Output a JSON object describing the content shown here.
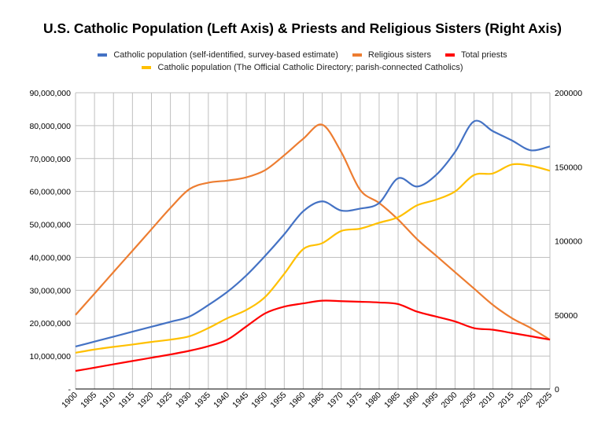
{
  "chart_data": {
    "type": "line",
    "title": "U.S. Catholic Population (Left Axis) & Priests and Religious Sisters (Right Axis)",
    "x": [
      1900,
      1905,
      1910,
      1915,
      1920,
      1925,
      1930,
      1935,
      1940,
      1945,
      1950,
      1955,
      1960,
      1965,
      1970,
      1975,
      1980,
      1985,
      1990,
      1995,
      2000,
      2005,
      2010,
      2015,
      2020,
      2025
    ],
    "left_axis": {
      "min": 0,
      "max": 90000000,
      "ticks": [
        "-",
        "10,000,000",
        "20,000,000",
        "30,000,000",
        "40,000,000",
        "50,000,000",
        "60,000,000",
        "70,000,000",
        "80,000,000",
        "90,000,000"
      ]
    },
    "right_axis": {
      "min": 0,
      "max": 200000,
      "ticks": [
        "0",
        "50000",
        "100000",
        "150000",
        "200000"
      ]
    },
    "grid": true,
    "legend_position": "top",
    "series": [
      {
        "name": "Catholic population (self-identified, survey-based estimate)",
        "axis": "left",
        "color": "#4472C4",
        "values": [
          12900000,
          14400000,
          15900000,
          17400000,
          18900000,
          20400000,
          22000000,
          25500000,
          29500000,
          34500000,
          40500000,
          47000000,
          54000000,
          57000000,
          54200000,
          54800000,
          56500000,
          64000000,
          61500000,
          65000000,
          72000000,
          81300000,
          78300000,
          75500000,
          72500000,
          73700000
        ]
      },
      {
        "name": "Religious sisters",
        "axis": "right",
        "color": "#ED7D31",
        "values": [
          50000,
          64400,
          78900,
          93300,
          107800,
          122200,
          134900,
          139300,
          140700,
          142900,
          147800,
          157800,
          168900,
          178400,
          160000,
          134400,
          125600,
          114400,
          101100,
          90000,
          78900,
          67800,
          56700,
          47800,
          41100,
          33300
        ]
      },
      {
        "name": "Total priests",
        "axis": "right",
        "color": "#FF0000",
        "values": [
          12200,
          14400,
          16700,
          18900,
          21100,
          23300,
          25800,
          28900,
          33300,
          42200,
          51100,
          55600,
          57800,
          59600,
          59300,
          58900,
          58400,
          57300,
          52200,
          48900,
          45600,
          41100,
          40000,
          37800,
          35600,
          33300
        ]
      },
      {
        "name": "Catholic population (The Official Catholic Directory; parish-connected Catholics)",
        "axis": "left",
        "color": "#FFC000",
        "values": [
          11000000,
          12000000,
          12800000,
          13500000,
          14300000,
          15000000,
          16000000,
          18500000,
          21500000,
          24000000,
          28000000,
          35000000,
          42500000,
          44300000,
          48000000,
          48700000,
          50500000,
          52200000,
          55800000,
          57500000,
          60000000,
          65000000,
          65500000,
          68200000,
          67800000,
          66300000
        ]
      }
    ]
  }
}
